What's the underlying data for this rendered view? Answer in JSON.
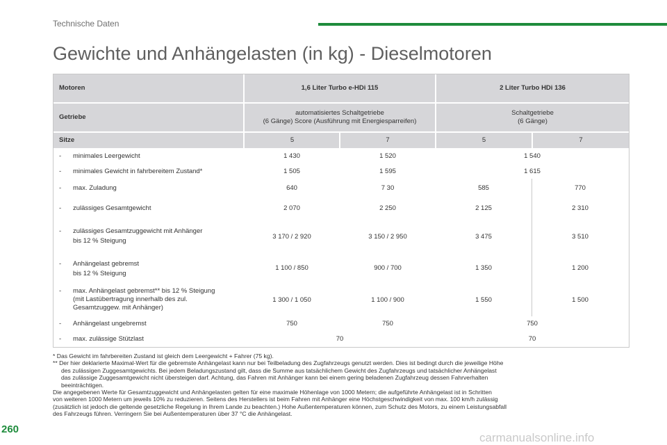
{
  "section": "Technische Daten",
  "title": "Gewichte und Anhängelasten (in kg) - Dieselmotoren",
  "table": {
    "header_motoren": "Motoren",
    "engine1": "1,6 Liter Turbo e-HDi 115",
    "engine2": "2 Liter Turbo HDi 136",
    "header_getriebe": "Getriebe",
    "gearbox1_line1": "automatisiertes Schaltgetriebe",
    "gearbox1_line2": "(6 Gänge) Score (Ausführung mit Energiesparreifen)",
    "gearbox2_line1": "Schaltgetriebe",
    "gearbox2_line2": "(6 Gänge)",
    "header_sitze": "Sitze",
    "seats": [
      "5",
      "7",
      "5",
      "7"
    ],
    "rows": [
      {
        "label": [
          "minimales Leergewicht"
        ],
        "values": [
          "1 430",
          "1 520",
          "1 540"
        ]
      },
      {
        "label": [
          "minimales Gewicht in fahrbereitem Zustand*"
        ],
        "values": [
          "1 505",
          "1 595",
          "1 615"
        ]
      },
      {
        "label": [
          "max. Zuladung"
        ],
        "values": [
          "640",
          "7 30",
          "585",
          "770"
        ]
      },
      {
        "label": [
          "zulässiges Gesamtgewicht"
        ],
        "values": [
          "2 070",
          "2 250",
          "2 125",
          "2 310"
        ]
      },
      {
        "label": [
          "zulässiges Gesamtzuggewicht mit Anhänger",
          "bis 12 % Steigung"
        ],
        "values": [
          "3 170 / 2 920",
          "3 150 / 2 950",
          "3 475",
          "3 510"
        ]
      },
      {
        "label": [
          "Anhängelast gebremst",
          "bis 12 % Steigung"
        ],
        "values": [
          "1 100 / 850",
          "900 / 700",
          "1 350",
          "1 200"
        ]
      },
      {
        "label": [
          "max. Anhängelast gebremst** bis 12 % Steigung",
          "(mit Lastübertragung innerhalb des zul.",
          "Gesamtzuggew. mit Anhänger)"
        ],
        "values": [
          "1 300 / 1 050",
          "1 100 / 900",
          "1 550",
          "1 500"
        ]
      },
      {
        "label": [
          "Anhängelast ungebremst"
        ],
        "values": [
          "750",
          "750",
          "750"
        ]
      },
      {
        "label": [
          "max. zulässige Stützlast"
        ],
        "values": [
          "70",
          "70"
        ]
      }
    ],
    "dash": "-"
  },
  "footnotes": {
    "f1": "* Das Gewicht im fahrbereiten Zustand ist gleich dem Leergewicht + Fahrer (75 kg).",
    "f2_line1": "** Der hier deklarierte Maximal-Wert für die gebremste Anhängelast kann nur bei Teilbeladung des Zugfahrzeugs genutzt werden. Dies ist bedingt durch die jeweilige Höhe",
    "f2_line2": "des zulässigen Zuggesamtgewichts. Bei jedem Beladungszustand gilt, dass die Summe aus tatsächlichem Gewicht des Zugfahrzeugs und tatsächlicher Anhängelast",
    "f2_line3": "das zulässige Zuggesamtgewicht nicht übersteigen darf. Achtung, das Fahren mit Anhänger kann bei einem gering beladenen Zugfahrzeug dessen Fahrverhalten",
    "f2_line4": "beeinträchtigen.",
    "p1": "Die angegebenen Werte für Gesamtzuggewicht und Anhängelasten gelten für eine maximale Höhenlage von 1000 Metern; die aufgeführte Anhängelast ist in Schritten",
    "p2": "von weiteren 1000 Metern um jeweils 10% zu reduzieren. Seitens des Herstellers ist beim Fahren mit Anhänger eine Höchstgeschwindigkeit von max. 100 km/h zulässig",
    "p3": "(zusätzlich ist jedoch die geltende gesetzliche Regelung in Ihrem Lande zu beachten.) Hohe Außentemperaturen können, zum Schutz des Motors, zu einem Leistungsabfall",
    "p4": "des Fahrzeugs führen. Verringern Sie bei Außentemperaturen über 37 °C die Anhängelast."
  },
  "page_number": "260",
  "watermark": "carmanualsonline.info",
  "colors": {
    "accent": "#1e8c3c",
    "header_bg": "#d6d6d9"
  }
}
